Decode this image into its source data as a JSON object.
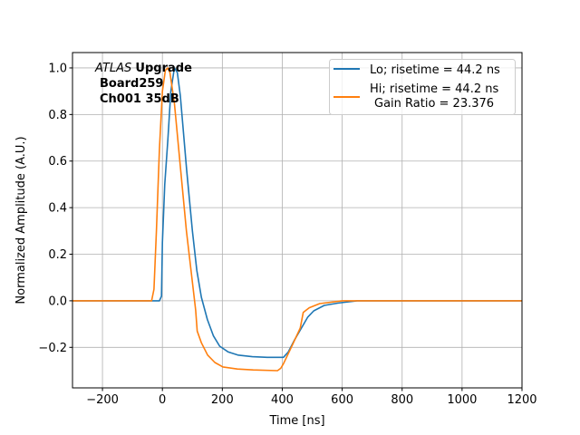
{
  "chart_data": {
    "type": "line",
    "title": "",
    "xlabel": "Time [ns]",
    "ylabel": "Normalized Amplitude (A.U.)",
    "xlim": [
      -300,
      1200
    ],
    "ylim": [
      -0.374,
      1.066
    ],
    "xticks": [
      -200,
      0,
      200,
      400,
      600,
      800,
      1000,
      1200
    ],
    "yticks": [
      -0.2,
      0.0,
      0.2,
      0.4,
      0.6,
      0.8,
      1.0
    ],
    "xtick_labels": [
      "−200",
      "0",
      "200",
      "400",
      "600",
      "800",
      "1000",
      "1200"
    ],
    "ytick_labels": [
      "−0.2",
      "0.0",
      "0.2",
      "0.4",
      "0.6",
      "0.8",
      "1.0"
    ],
    "grid": true,
    "legend_position": "top-right",
    "annotation": {
      "italic": "ATLAS",
      "bold": "Upgrade",
      "line2": "Board259",
      "line3": "Ch001 35dB"
    },
    "series": [
      {
        "name": "Lo; risetime = 44.2 ns",
        "color": "#1f77b4",
        "x": [
          -300,
          -10,
          -3,
          0,
          8,
          18,
          28,
          40,
          50,
          60,
          81,
          100,
          115,
          130,
          150,
          170,
          191,
          220,
          252,
          300,
          350,
          404,
          420,
          440,
          464,
          485,
          505,
          540,
          585,
          650,
          800,
          1000,
          1200
        ],
        "y": [
          0,
          0,
          0.02,
          0.25,
          0.5,
          0.69,
          0.9,
          1.0,
          0.98,
          0.88,
          0.56,
          0.3,
          0.13,
          0.015,
          -0.08,
          -0.15,
          -0.195,
          -0.22,
          -0.233,
          -0.24,
          -0.243,
          -0.243,
          -0.22,
          -0.17,
          -0.117,
          -0.07,
          -0.043,
          -0.02,
          -0.01,
          0,
          0,
          0,
          0
        ]
      },
      {
        "name": "Hi; risetime = 44.2 ns\n Gain Ratio = 23.376",
        "color": "#ff7f0e",
        "x": [
          -300,
          -36,
          -28,
          -20,
          -10,
          0,
          10,
          18,
          25,
          40,
          61,
          80,
          100,
          111,
          116,
          130,
          151,
          175,
          202,
          250,
          303,
          384,
          395,
          404,
          430,
          460,
          470,
          490,
          525,
          600,
          800,
          1000,
          1200
        ],
        "y": [
          0,
          0,
          0.05,
          0.3,
          0.65,
          0.9,
          0.99,
          1.0,
          0.98,
          0.85,
          0.56,
          0.3,
          0.08,
          -0.04,
          -0.13,
          -0.18,
          -0.233,
          -0.265,
          -0.284,
          -0.293,
          -0.297,
          -0.3,
          -0.29,
          -0.27,
          -0.2,
          -0.117,
          -0.05,
          -0.03,
          -0.012,
          0,
          0,
          0,
          0
        ]
      }
    ],
    "legend": {
      "lo_label": "Lo; risetime = 44.2 ns",
      "hi_label_line1": "Hi; risetime = 44.2 ns",
      "hi_label_line2": "Gain Ratio = 23.376"
    }
  }
}
